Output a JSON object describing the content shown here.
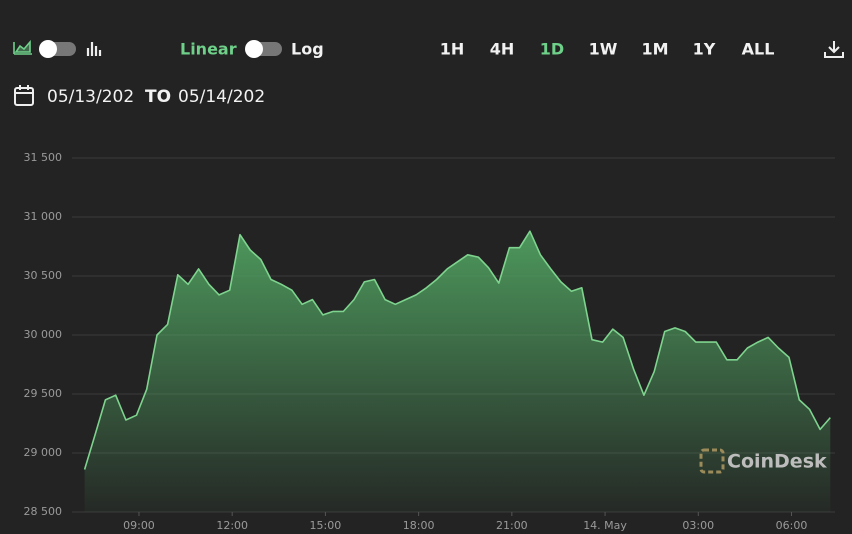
{
  "toolbar": {
    "scale_left": "Linear",
    "scale_right": "Log",
    "ranges": [
      "1H",
      "4H",
      "1D",
      "1W",
      "1M",
      "1Y",
      "ALL"
    ],
    "active_range": 2,
    "active_color": "#6fd08a",
    "date_from": "05/13/202",
    "date_sep": "TO",
    "date_to": "05/14/202",
    "watermark": "CoinDesk"
  },
  "chart_data": {
    "type": "area",
    "color": "#7ed48e",
    "fill_color": "#4f9e5f",
    "grid": true,
    "x": [
      7.25,
      7.58,
      7.92,
      8.25,
      8.58,
      8.92,
      9.25,
      9.58,
      9.92,
      10.25,
      10.58,
      10.92,
      11.25,
      11.58,
      11.92,
      12.25,
      12.58,
      12.92,
      13.25,
      13.58,
      13.92,
      14.25,
      14.58,
      14.92,
      15.25,
      15.58,
      15.92,
      16.25,
      16.58,
      16.92,
      17.25,
      17.58,
      17.92,
      18.25,
      18.58,
      18.92,
      19.25,
      19.58,
      19.92,
      20.25,
      20.58,
      20.92,
      21.25,
      21.58,
      21.92,
      22.25,
      22.58,
      22.92,
      23.25,
      23.58,
      23.92,
      24.25,
      24.58,
      24.92,
      25.25,
      25.58,
      25.92,
      26.25,
      26.58,
      26.92,
      27.25,
      27.58,
      27.92,
      28.25,
      28.58,
      28.92,
      29.25,
      29.58,
      29.92,
      30.25,
      30.58,
      30.92,
      31.25
    ],
    "values": [
      28860,
      29150,
      29450,
      29490,
      29280,
      29320,
      29540,
      30000,
      30090,
      30510,
      30430,
      30560,
      30430,
      30340,
      30380,
      30850,
      30720,
      30640,
      30470,
      30430,
      30380,
      30260,
      30300,
      30170,
      30200,
      30200,
      30300,
      30450,
      30470,
      30300,
      30260,
      30300,
      30340,
      30400,
      30470,
      30560,
      30620,
      30680,
      30660,
      30570,
      30440,
      30740,
      30740,
      30880,
      30680,
      30560,
      30450,
      30370,
      30400,
      29960,
      29940,
      30050,
      29980,
      29710,
      29490,
      29690,
      30030,
      30060,
      30030,
      29940,
      29940,
      29940,
      29790,
      29790,
      29890,
      29940,
      29980,
      29890,
      29810,
      29450,
      29370,
      29200,
      29300
    ],
    "xlim": [
      6.6,
      31.4
    ],
    "xticks": [
      {
        "value": 9,
        "label": "09:00"
      },
      {
        "value": 12,
        "label": "12:00"
      },
      {
        "value": 15,
        "label": "15:00"
      },
      {
        "value": 18,
        "label": "18:00"
      },
      {
        "value": 21,
        "label": "21:00"
      },
      {
        "value": 24,
        "label": "14. May"
      },
      {
        "value": 27,
        "label": "03:00"
      },
      {
        "value": 30,
        "label": "06:00"
      }
    ],
    "ylim": [
      28500,
      31500
    ],
    "yticks": [
      {
        "value": 28500,
        "label": "28 500"
      },
      {
        "value": 29000,
        "label": "29 000"
      },
      {
        "value": 29500,
        "label": "29 500"
      },
      {
        "value": 30000,
        "label": "30 000"
      },
      {
        "value": 30500,
        "label": "30 500"
      },
      {
        "value": 31000,
        "label": "31 000"
      },
      {
        "value": 31500,
        "label": "31 500"
      }
    ]
  }
}
